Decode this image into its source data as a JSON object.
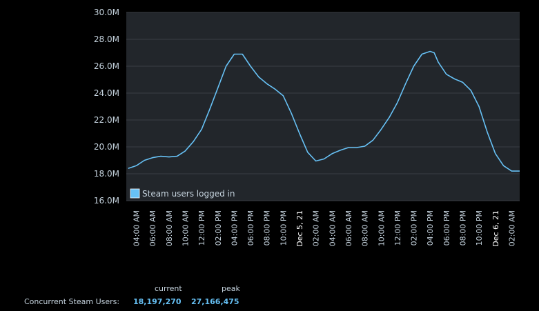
{
  "colors": {
    "background": "#000000",
    "plot_background": "#22262b",
    "gridline": "#3a3f45",
    "line": "#67c1f5",
    "text": "#c6d4df",
    "stat_value": "#66c0f4"
  },
  "chart_data": {
    "type": "line",
    "series": [
      {
        "name": "Steam users logged in",
        "x": [
          "03:00",
          "04:00",
          "05:00",
          "06:00",
          "07:00",
          "08:00",
          "09:00",
          "10:00",
          "11:00",
          "12:00",
          "13:00",
          "14:00",
          "15:00",
          "16:00",
          "17:00",
          "18:00",
          "19:00",
          "20:00",
          "21:00",
          "22:00",
          "23:00",
          "00:00",
          "01:00",
          "02:00",
          "03:00",
          "04:00",
          "05:00",
          "06:00",
          "07:00",
          "08:00",
          "09:00",
          "10:00",
          "11:00",
          "12:00",
          "13:00",
          "14:00",
          "15:00",
          "16:00",
          "16:30",
          "17:00",
          "18:00",
          "19:00",
          "20:00",
          "21:00",
          "22:00",
          "23:00",
          "00:00",
          "01:00",
          "02:00",
          "03:00"
        ],
        "values": [
          18.4,
          18.6,
          19.0,
          19.2,
          19.3,
          19.25,
          19.3,
          19.7,
          20.4,
          21.3,
          22.8,
          24.4,
          26.0,
          26.9,
          26.9,
          26.0,
          25.2,
          24.7,
          24.3,
          23.8,
          22.5,
          21.0,
          19.6,
          18.95,
          19.1,
          19.5,
          19.75,
          19.95,
          19.95,
          20.05,
          20.5,
          21.3,
          22.2,
          23.3,
          24.7,
          26.0,
          26.9,
          27.1,
          27.0,
          26.3,
          25.4,
          25.05,
          24.8,
          24.2,
          23.0,
          21.1,
          19.5,
          18.6,
          18.2,
          18.2
        ]
      }
    ],
    "y_unit": "M",
    "ylim": [
      16,
      30
    ],
    "yticks": [
      "30.0M",
      "28.0M",
      "26.0M",
      "24.0M",
      "22.0M",
      "20.0M",
      "18.0M",
      "16.0M"
    ],
    "xticks": [
      "04:00 AM",
      "06:00 AM",
      "08:00 AM",
      "10:00 AM",
      "12:00 PM",
      "02:00 PM",
      "04:00 PM",
      "06:00 PM",
      "08:00 PM",
      "10:00 PM",
      "Dec 5, 21",
      "02:00 AM",
      "04:00 AM",
      "06:00 AM",
      "08:00 AM",
      "10:00 AM",
      "12:00 PM",
      "02:00 PM",
      "04:00 PM",
      "06:00 PM",
      "08:00 PM",
      "10:00 PM",
      "Dec 6, 21",
      "02:00 AM"
    ],
    "date_ticks": [
      "Dec 5, 21",
      "Dec 6, 21"
    ],
    "grid": true,
    "legend_position": "bottom-left"
  },
  "stats": {
    "label": "Concurrent Steam Users:",
    "current_header": "current",
    "peak_header": "peak",
    "current": "18,197,270",
    "peak": "27,166,475"
  }
}
